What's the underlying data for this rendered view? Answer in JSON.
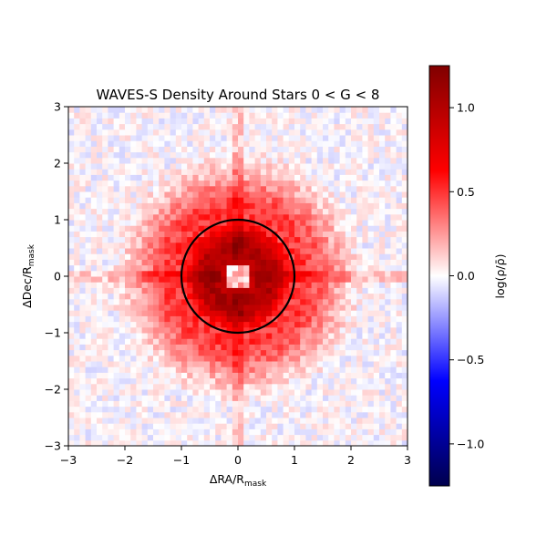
{
  "chart_data": {
    "type": "heatmap",
    "title": "WAVES-S Density Around Stars 0 < G < 8",
    "xlabel": "ΔRA/R",
    "xlabel_sub": "mask",
    "ylabel": "ΔDec/R",
    "ylabel_sub": "mask",
    "colorbar_label": "log(ρ/ρ̄)",
    "xlim": [
      -3,
      3
    ],
    "ylim": [
      -3,
      3
    ],
    "x_ticks": [
      "−3",
      "−2",
      "−1",
      "0",
      "1",
      "2",
      "3"
    ],
    "y_ticks": [
      "−3",
      "−2",
      "−1",
      "0",
      "1",
      "2",
      "3"
    ],
    "colorbar_range": [
      -1.25,
      1.25
    ],
    "colorbar_ticks": [
      {
        "value": 1.0,
        "label": "1.0"
      },
      {
        "value": 0.5,
        "label": "0.5"
      },
      {
        "value": 0.0,
        "label": "0.0"
      },
      {
        "value": -0.5,
        "label": "−0.5"
      },
      {
        "value": -1.0,
        "label": "−1.0"
      }
    ],
    "colormap": "seismic",
    "grid_bins": 60,
    "mask_circle": {
      "center": [
        0,
        0
      ],
      "radius": 1,
      "color": "#000000"
    },
    "density_profile": {
      "center_hole_value": 0.15,
      "center_hole_halfwidth": 0.25,
      "ring_peak_value": 1.05,
      "ring_peak_radius": 0.5,
      "outer_value": -0.35,
      "spike_axes": [
        "RA",
        "Dec"
      ]
    }
  }
}
